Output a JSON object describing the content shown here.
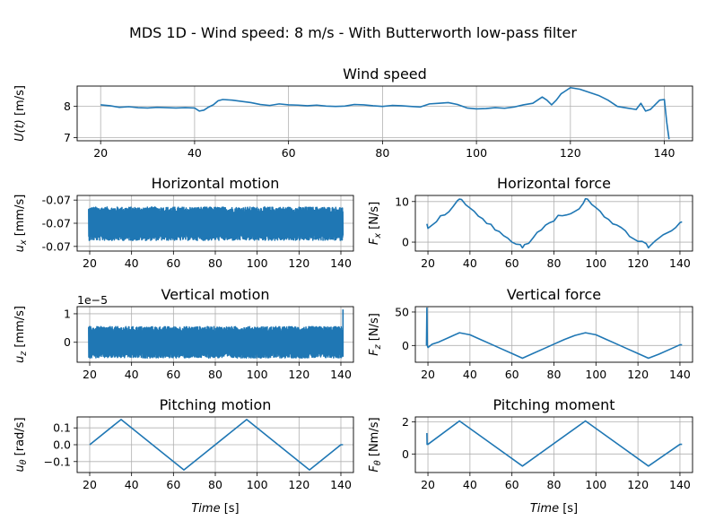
{
  "figure": {
    "title": "MDS 1D - Wind speed: 8 m/s - With Butterworth low-pass filter",
    "line_color": "#1f77b4",
    "grid_color": "#b0b0b0"
  },
  "chart_data": [
    {
      "id": "wind-speed",
      "type": "line",
      "title": "Wind speed",
      "xlabel": "",
      "ylabel": "U(t) [m/s]",
      "xlim": [
        15,
        146
      ],
      "ylim": [
        6.9,
        8.65
      ],
      "xticks": [
        20,
        40,
        60,
        80,
        100,
        120,
        140
      ],
      "yticks": [
        {
          "v": 7,
          "label": "7"
        },
        {
          "v": 8,
          "label": "8"
        }
      ],
      "grid": true,
      "series": [
        {
          "x": [
            20,
            22,
            24,
            26,
            28,
            30,
            32,
            34,
            36,
            38,
            40,
            41,
            42,
            43,
            44,
            45,
            46,
            48,
            50,
            52,
            54,
            56,
            58,
            60,
            62,
            64,
            66,
            68,
            70,
            72,
            74,
            76,
            78,
            80,
            82,
            84,
            86,
            88,
            90,
            92,
            94,
            96,
            98,
            100,
            102,
            104,
            106,
            108,
            110,
            112,
            114,
            115,
            116,
            117,
            118,
            119,
            120,
            122,
            124,
            126,
            128,
            130,
            132,
            134,
            135,
            136,
            137,
            138,
            139,
            140,
            140.5,
            141
          ],
          "y": [
            8.05,
            8.02,
            7.97,
            7.99,
            7.96,
            7.95,
            7.97,
            7.96,
            7.95,
            7.96,
            7.95,
            7.85,
            7.88,
            7.98,
            8.05,
            8.18,
            8.22,
            8.2,
            8.16,
            8.12,
            8.06,
            8.03,
            8.08,
            8.05,
            8.04,
            8.02,
            8.04,
            8.01,
            8.0,
            8.01,
            8.06,
            8.05,
            8.02,
            8.0,
            8.03,
            8.02,
            8.0,
            7.98,
            8.08,
            8.1,
            8.12,
            8.06,
            7.95,
            7.92,
            7.93,
            7.96,
            7.94,
            7.98,
            8.05,
            8.1,
            8.3,
            8.2,
            8.05,
            8.2,
            8.4,
            8.5,
            8.6,
            8.55,
            8.45,
            8.35,
            8.2,
            8.0,
            7.95,
            7.9,
            8.1,
            7.85,
            7.9,
            8.05,
            8.2,
            8.22,
            7.5,
            6.95
          ]
        }
      ]
    },
    {
      "id": "horizontal-motion",
      "type": "line",
      "title": "Horizontal motion",
      "xlabel": "",
      "ylabel": "u_x [mm/s]",
      "xlim": [
        14,
        146
      ],
      "ylim": [
        -0.0701,
        -0.0689
      ],
      "xticks": [
        20,
        40,
        60,
        80,
        100,
        120,
        140
      ],
      "yticks": [
        {
          "v": -0.069,
          "label": "-0.07"
        },
        {
          "v": -0.0695,
          "label": "-0.07"
        },
        {
          "v": -0.07,
          "label": "-0.07"
        }
      ],
      "grid": true,
      "series": [
        {
          "x_range": [
            19.5,
            141
          ],
          "center": -0.06951,
          "amplitude": 0.00036,
          "points": 1300
        }
      ]
    },
    {
      "id": "horizontal-force",
      "type": "line",
      "title": "Horizontal force",
      "xlabel": "",
      "ylabel": "F_x [N/s]",
      "xlim": [
        14,
        146
      ],
      "ylim": [
        -2.2,
        11.5
      ],
      "xticks": [
        20,
        40,
        60,
        80,
        100,
        120,
        140
      ],
      "yticks": [
        {
          "v": 0,
          "label": "0"
        },
        {
          "v": 10,
          "label": "10"
        }
      ],
      "grid": true,
      "series": [
        {
          "x": [
            19.5,
            20,
            22,
            24,
            26,
            28,
            30,
            32,
            34,
            35,
            36,
            38,
            40,
            42,
            44,
            46,
            48,
            50,
            52,
            54,
            56,
            58,
            60,
            62,
            64,
            65,
            66,
            68,
            70,
            72,
            74,
            76,
            78,
            80,
            82,
            84,
            86,
            88,
            90,
            92,
            94,
            95,
            96,
            98,
            100,
            102,
            104,
            106,
            108,
            110,
            112,
            114,
            116,
            118,
            120,
            122,
            124,
            125,
            126,
            128,
            130,
            132,
            134,
            136,
            138,
            140,
            141
          ],
          "y": [
            4.5,
            3.4,
            4.2,
            5.0,
            6.5,
            6.7,
            7.5,
            8.8,
            10.2,
            10.6,
            10.5,
            9.2,
            8.4,
            7.6,
            6.4,
            5.8,
            4.6,
            4.4,
            3.0,
            2.6,
            1.6,
            1.0,
            0.0,
            -0.5,
            -0.6,
            -1.4,
            -0.6,
            -0.3,
            1.0,
            2.4,
            3.0,
            4.2,
            4.8,
            5.2,
            6.6,
            6.5,
            6.7,
            7.0,
            7.6,
            8.2,
            9.6,
            10.7,
            10.6,
            9.3,
            8.5,
            7.6,
            6.2,
            5.6,
            4.5,
            4.2,
            3.6,
            2.8,
            1.4,
            0.8,
            0.2,
            0.2,
            -0.4,
            -1.4,
            -0.8,
            0.2,
            1.0,
            1.8,
            2.3,
            2.8,
            3.6,
            4.8,
            5.0
          ]
        }
      ]
    },
    {
      "id": "vertical-motion",
      "type": "line",
      "title": "Vertical motion",
      "xlabel": "",
      "ylabel": "u_z [mm/s]",
      "offset_label": "1e−5",
      "xlim": [
        14,
        146
      ],
      "ylim": [
        -0.7,
        1.25
      ],
      "xticks": [
        20,
        40,
        60,
        80,
        100,
        120,
        140
      ],
      "yticks": [
        {
          "v": 0,
          "label": "0"
        },
        {
          "v": 1,
          "label": "1"
        }
      ],
      "grid": true,
      "series": [
        {
          "x_range": [
            19.5,
            141
          ],
          "center": 0.0,
          "amplitude": 0.55,
          "points": 1300,
          "spike_end": 1.15
        }
      ]
    },
    {
      "id": "vertical-force",
      "type": "line",
      "title": "Vertical force",
      "xlabel": "",
      "ylabel": "F_z [N/s]",
      "xlim": [
        14,
        146
      ],
      "ylim": [
        -25,
        58
      ],
      "xticks": [
        20,
        40,
        60,
        80,
        100,
        120,
        140
      ],
      "yticks": [
        {
          "v": 0,
          "label": "0"
        },
        {
          "v": 50,
          "label": "50"
        }
      ],
      "grid": true,
      "series": [
        {
          "x": [
            19.3,
            19.5,
            19.7,
            20,
            22,
            25,
            30,
            35,
            40,
            45,
            50,
            55,
            60,
            65,
            70,
            75,
            80,
            85,
            90,
            95,
            100,
            105,
            110,
            115,
            120,
            125,
            130,
            135,
            140,
            141
          ],
          "y": [
            0,
            56,
            0,
            -3,
            2,
            5,
            12,
            19,
            16,
            9,
            2,
            -5,
            -12,
            -19,
            -12,
            -5,
            2,
            9,
            15,
            19,
            16,
            9,
            2,
            -5,
            -12,
            -19,
            -13,
            -6,
            1,
            1
          ]
        }
      ]
    },
    {
      "id": "pitching-motion",
      "type": "line",
      "title": "Pitching motion",
      "xlabel": "Time [s]",
      "ylabel": "u_θ [rad/s]",
      "xlim": [
        14,
        146
      ],
      "ylim": [
        -0.165,
        0.165
      ],
      "xticks": [
        20,
        40,
        60,
        80,
        100,
        120,
        140
      ],
      "yticks": [
        {
          "v": -0.1,
          "label": "−0.1"
        },
        {
          "v": 0.0,
          "label": "0.0"
        },
        {
          "v": 0.1,
          "label": "0.1"
        }
      ],
      "grid": true,
      "series": [
        {
          "x": [
            20,
            35,
            65,
            95,
            125,
            140,
            141
          ],
          "y": [
            0.0,
            0.15,
            -0.15,
            0.15,
            -0.15,
            0.0,
            0.0
          ]
        }
      ]
    },
    {
      "id": "pitching-moment",
      "type": "line",
      "title": "Pitching moment",
      "xlabel": "Time [s]",
      "ylabel": "F_θ [Nm/s]",
      "xlim": [
        14,
        146
      ],
      "ylim": [
        -1.15,
        2.3
      ],
      "xticks": [
        20,
        40,
        60,
        80,
        100,
        120,
        140
      ],
      "yticks": [
        {
          "v": 0,
          "label": "0"
        },
        {
          "v": 2,
          "label": "2"
        }
      ],
      "grid": true,
      "series": [
        {
          "x": [
            19.5,
            19.6,
            20,
            35,
            65,
            95,
            125,
            140,
            141
          ],
          "y": [
            1.3,
            0.6,
            0.6,
            2.05,
            -0.75,
            2.05,
            -0.75,
            0.6,
            0.6
          ]
        }
      ]
    }
  ]
}
